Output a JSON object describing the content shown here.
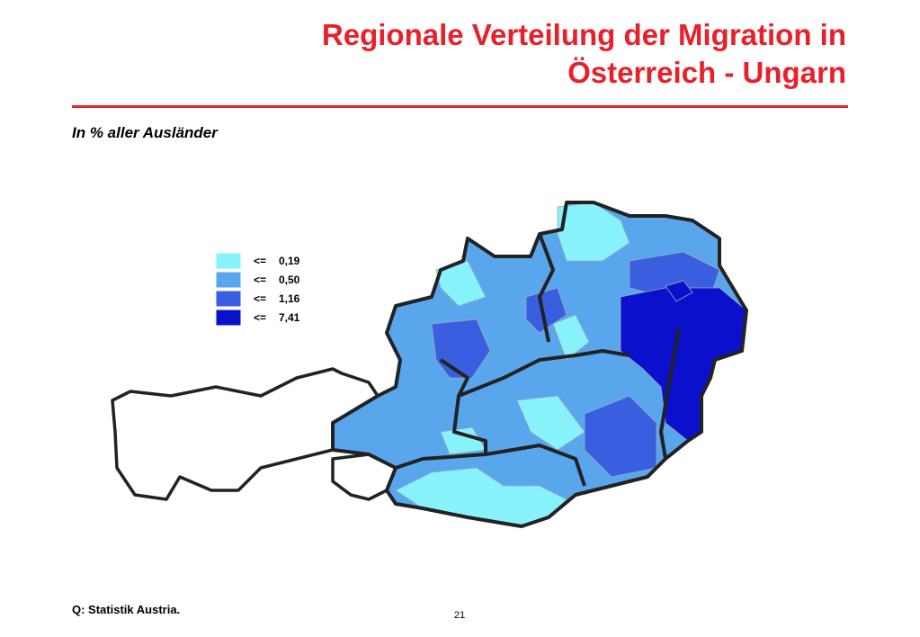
{
  "header": {
    "title": [
      "Regionale Verteilung der Migration in",
      "Österreich - Ungarn"
    ],
    "subtitle": "In % aller Ausländer"
  },
  "legend": {
    "items": [
      {
        "operator": "<=",
        "label": "0,19",
        "color": "#88f2fa"
      },
      {
        "operator": "<=",
        "label": "0,50",
        "color": "#5aa6ec"
      },
      {
        "operator": "<=",
        "label": "1,16",
        "color": "#3a5ee0"
      },
      {
        "operator": "<=",
        "label": "7,41",
        "color": "#0a10cc"
      }
    ]
  },
  "footer": {
    "source": "Q: Statistik Austria.",
    "page_number": "21"
  }
}
